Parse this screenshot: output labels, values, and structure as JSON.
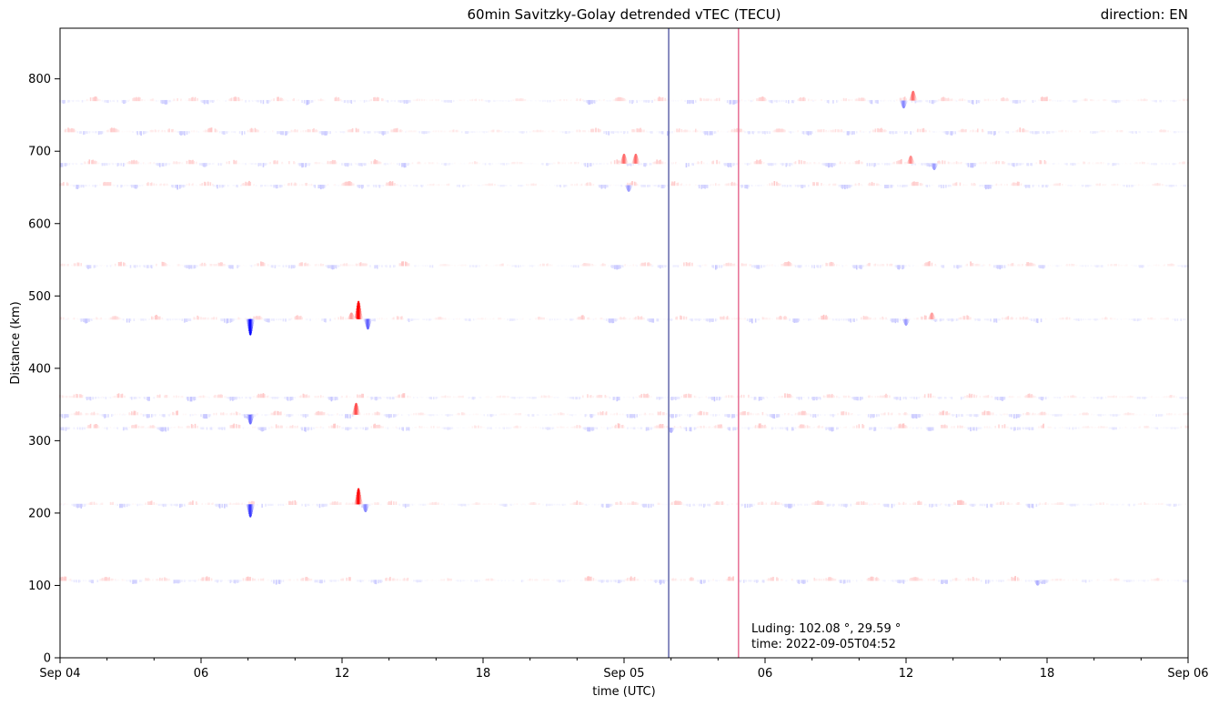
{
  "chart_data": {
    "type": "scatter",
    "title": "60min Savitzky-Golay detrended vTEC (TECU)",
    "direction_label": "direction: EN",
    "xlabel": "time (UTC)",
    "ylabel": "Distance (km)",
    "xlim_hours": [
      0,
      48
    ],
    "ylim": [
      0,
      870
    ],
    "x_ticks": [
      {
        "hour": 0,
        "label": "Sep 04"
      },
      {
        "hour": 6,
        "label": "06"
      },
      {
        "hour": 12,
        "label": "12"
      },
      {
        "hour": 18,
        "label": "18"
      },
      {
        "hour": 24,
        "label": "Sep 05"
      },
      {
        "hour": 30,
        "label": "06"
      },
      {
        "hour": 36,
        "label": "12"
      },
      {
        "hour": 42,
        "label": "18"
      },
      {
        "hour": 48,
        "label": "Sep 06"
      }
    ],
    "y_ticks": [
      0,
      100,
      200,
      300,
      400,
      500,
      600,
      700,
      800
    ],
    "grid": false,
    "vlines": [
      {
        "hour": 25.9,
        "color": "#6a6fb0",
        "label": "blue line"
      },
      {
        "hour": 28.87,
        "color": "#e8769a",
        "label": "pink line"
      }
    ],
    "annotation": {
      "line1": "Luding: 102.08 °, 29.59 °",
      "line2": "time: 2022-09-05T04:52"
    },
    "stations_km": [
      107,
      212,
      318,
      336,
      360,
      468,
      542,
      653,
      683,
      727,
      770
    ],
    "strong_events": [
      {
        "km": 468,
        "hour": 8.1,
        "amp": -2.5
      },
      {
        "km": 468,
        "hour": 12.7,
        "amp": 2.8
      },
      {
        "km": 468,
        "hour": 13.1,
        "amp": -1.6
      },
      {
        "km": 468,
        "hour": 12.4,
        "amp": 1.0
      },
      {
        "km": 468,
        "hour": 36.0,
        "amp": -1.0
      },
      {
        "km": 468,
        "hour": 37.1,
        "amp": 1.0
      },
      {
        "km": 212,
        "hour": 8.1,
        "amp": -2.0
      },
      {
        "km": 212,
        "hour": 12.7,
        "amp": 2.5
      },
      {
        "km": 212,
        "hour": 13.0,
        "amp": -1.2
      },
      {
        "km": 336,
        "hour": 8.1,
        "amp": -1.5
      },
      {
        "km": 336,
        "hour": 12.6,
        "amp": 1.8
      },
      {
        "km": 770,
        "hour": 35.9,
        "amp": -1.2
      },
      {
        "km": 770,
        "hour": 36.3,
        "amp": 1.5
      },
      {
        "km": 683,
        "hour": 24.0,
        "amp": 1.5
      },
      {
        "km": 683,
        "hour": 24.5,
        "amp": 1.5
      },
      {
        "km": 683,
        "hour": 36.2,
        "amp": 1.2
      },
      {
        "km": 683,
        "hour": 37.2,
        "amp": -1.0
      },
      {
        "km": 653,
        "hour": 24.2,
        "amp": -1.0
      },
      {
        "km": 107,
        "hour": 41.6,
        "amp": -0.8
      },
      {
        "km": 318,
        "hour": 26.0,
        "amp": -0.8
      }
    ]
  }
}
